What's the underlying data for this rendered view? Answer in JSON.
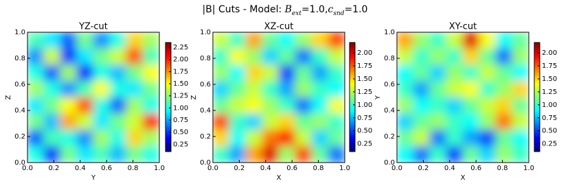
{
  "title_parts": [
    {
      "text": "|B| Cuts - Model: ",
      "style": "plain"
    },
    {
      "text": "B",
      "style": "math"
    },
    {
      "text": "ext",
      "style": "sub"
    },
    {
      "text": "=1.0,",
      "style": "plain"
    },
    {
      "text": "c",
      "style": "math"
    },
    {
      "text": "snd",
      "style": "sub"
    },
    {
      "text": "=1.0",
      "style": "plain"
    }
  ],
  "chart_data": [
    {
      "type": "heatmap",
      "title": "YZ-cut",
      "xlabel": "Y",
      "ylabel": "Z",
      "colormap": "jet",
      "xlim": [
        0,
        1
      ],
      "ylim": [
        0,
        1
      ],
      "xticks": [
        {
          "value": 0,
          "label": "0.0"
        },
        0.2,
        0.4,
        0.6,
        0.8,
        {
          "value": 1,
          "label": "1.0"
        }
      ],
      "yticks": [
        {
          "value": 0,
          "label": "0.0"
        },
        0.2,
        0.4,
        0.6,
        0.8,
        {
          "value": 1,
          "label": "1.0"
        }
      ],
      "zlim": [
        0.1,
        2.35
      ],
      "zticks": [
        0.25,
        {
          "value": 0.5,
          "label": "0.50"
        },
        0.75,
        {
          "value": 1,
          "label": "1.00"
        },
        1.25,
        {
          "value": 1.5,
          "label": "1.50"
        },
        1.75,
        {
          "value": 2,
          "label": "2.00"
        },
        2.25
      ],
      "z": [
        [
          1.1,
          0.9,
          0.6,
          1.2,
          0.7,
          1.0,
          1.6,
          1.3
        ],
        [
          0.7,
          1.4,
          0.5,
          0.9,
          1.2,
          1.4,
          1.9,
          1.1
        ],
        [
          1.0,
          0.6,
          1.3,
          0.4,
          1.0,
          0.8,
          1.2,
          1.5
        ],
        [
          1.3,
          1.0,
          0.7,
          1.1,
          1.5,
          1.0,
          0.9,
          1.2
        ],
        [
          0.9,
          1.2,
          1.5,
          1.9,
          1.0,
          0.6,
          1.3,
          1.0
        ],
        [
          1.2,
          0.8,
          1.7,
          1.4,
          0.9,
          1.2,
          1.4,
          2.0
        ],
        [
          0.6,
          1.1,
          1.0,
          0.7,
          1.3,
          1.0,
          1.6,
          1.3
        ],
        [
          1.0,
          0.5,
          1.2,
          0.9,
          1.1,
          0.8,
          1.2,
          1.0
        ]
      ]
    },
    {
      "type": "heatmap",
      "title": "XZ-cut",
      "xlabel": "X",
      "ylabel": "Z",
      "colormap": "jet",
      "xlim": [
        0,
        1
      ],
      "ylim": [
        0,
        1
      ],
      "xticks": [
        {
          "value": 0,
          "label": "0.0"
        },
        0.2,
        0.4,
        0.6,
        0.8,
        {
          "value": 1,
          "label": "1.0"
        }
      ],
      "yticks": [
        {
          "value": 0,
          "label": "0.0"
        },
        0.2,
        0.4,
        0.6,
        0.8,
        {
          "value": 1,
          "label": "1.0"
        }
      ],
      "zlim": [
        0.1,
        2.2
      ],
      "zticks": [
        0.25,
        {
          "value": 0.5,
          "label": "0.50"
        },
        0.75,
        {
          "value": 1,
          "label": "1.00"
        },
        1.25,
        {
          "value": 1.5,
          "label": "1.50"
        },
        1.75,
        {
          "value": 2,
          "label": "2.00"
        }
      ],
      "z": [
        [
          1.3,
          1.0,
          1.6,
          1.1,
          0.9,
          1.2,
          1.5,
          1.8
        ],
        [
          1.0,
          1.4,
          1.2,
          0.8,
          1.1,
          0.6,
          1.0,
          1.3
        ],
        [
          1.2,
          0.9,
          1.5,
          1.3,
          0.5,
          1.1,
          0.7,
          1.0
        ],
        [
          0.8,
          1.1,
          1.3,
          1.0,
          0.7,
          1.2,
          1.0,
          0.9
        ],
        [
          1.1,
          1.3,
          1.4,
          1.2,
          1.0,
          0.6,
          0.9,
          1.4
        ],
        [
          1.8,
          1.0,
          0.8,
          1.3,
          1.5,
          1.1,
          1.2,
          1.0
        ],
        [
          1.5,
          0.9,
          1.3,
          1.7,
          1.9,
          1.3,
          0.8,
          1.1
        ],
        [
          1.0,
          0.7,
          1.6,
          2.0,
          1.2,
          1.8,
          1.1,
          0.6
        ]
      ]
    },
    {
      "type": "heatmap",
      "title": "XY-cut",
      "xlabel": "X",
      "ylabel": "Y",
      "colormap": "jet",
      "xlim": [
        0,
        1
      ],
      "ylim": [
        0,
        1
      ],
      "xticks": [
        {
          "value": 0,
          "label": "0.0"
        },
        0.2,
        0.4,
        0.6,
        0.8,
        {
          "value": 1,
          "label": "1.0"
        }
      ],
      "yticks": [
        {
          "value": 0,
          "label": "0.0"
        },
        0.2,
        0.4,
        0.6,
        0.8,
        {
          "value": 1,
          "label": "1.0"
        }
      ],
      "zlim": [
        0.1,
        2.2
      ],
      "zticks": [
        0.25,
        {
          "value": 0.5,
          "label": "0.50"
        },
        0.75,
        {
          "value": 1,
          "label": "1.00"
        },
        1.25,
        {
          "value": 1.5,
          "label": "1.50"
        },
        1.75,
        {
          "value": 2,
          "label": "2.00"
        }
      ],
      "z": [
        [
          1.6,
          1.2,
          1.0,
          1.3,
          2.0,
          1.4,
          0.9,
          1.1
        ],
        [
          1.3,
          1.0,
          1.2,
          1.0,
          1.5,
          1.1,
          0.6,
          1.2
        ],
        [
          0.9,
          1.1,
          0.8,
          1.2,
          1.0,
          1.3,
          1.1,
          0.9
        ],
        [
          1.0,
          0.7,
          1.1,
          1.3,
          1.4,
          1.0,
          1.2,
          1.5
        ],
        [
          1.2,
          0.9,
          1.0,
          0.8,
          1.1,
          1.3,
          1.5,
          1.1
        ],
        [
          0.8,
          1.1,
          1.2,
          1.0,
          0.9,
          1.2,
          1.7,
          1.3
        ],
        [
          1.1,
          1.3,
          0.6,
          1.0,
          0.7,
          0.5,
          1.1,
          0.9
        ],
        [
          0.9,
          0.6,
          1.0,
          0.5,
          1.1,
          0.8,
          1.2,
          1.0
        ]
      ]
    }
  ]
}
